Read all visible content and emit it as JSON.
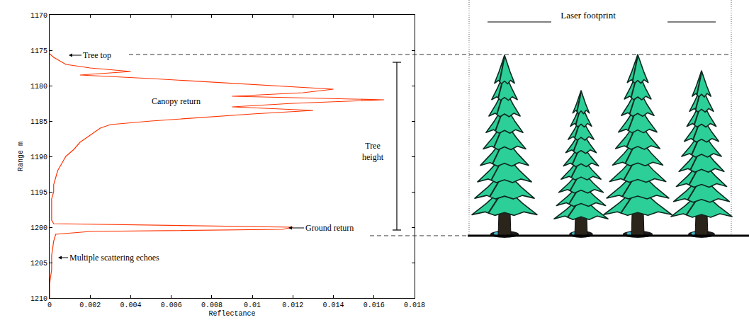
{
  "chart_data": {
    "type": "line",
    "x_label": "Reflectance",
    "y_label": "Range m",
    "color": "#ff3300",
    "x": [
      0,
      0.0002,
      0.0008,
      0.002,
      0.004,
      0.0015,
      0.005,
      0.008,
      0.011,
      0.014,
      0.0125,
      0.009,
      0.0165,
      0.012,
      0.009,
      0.013,
      0.01,
      0.0075,
      0.005,
      0.003,
      0.0025,
      0.002,
      0.0015,
      0.0012,
      0.0008,
      0.0006,
      0.0004,
      0.0003,
      0.0002,
      0.0002,
      0.0001,
      0.0001,
      0.0001,
      0.0001,
      0.0002,
      0.012,
      0.0115,
      0.002,
      0.0003,
      0.0002,
      0.0001,
      0.0001,
      0,
      0
    ],
    "values": [
      1175.5,
      1176,
      1177,
      1177.5,
      1178,
      1178.5,
      1179,
      1179.5,
      1180,
      1180.5,
      1181,
      1181.5,
      1182,
      1182.5,
      1183,
      1183.5,
      1184,
      1184.5,
      1185,
      1185.5,
      1186,
      1187,
      1188,
      1189,
      1190,
      1191,
      1192,
      1193,
      1194,
      1195,
      1196,
      1197,
      1198,
      1199,
      1199.5,
      1200,
      1200.3,
      1200.6,
      1201,
      1202,
      1204,
      1206,
      1208,
      1210
    ],
    "xlim": [
      0,
      0.018
    ],
    "xticks": [
      0,
      0.002,
      0.004,
      0.006,
      0.008,
      0.01,
      0.012,
      0.014,
      0.016,
      0.018
    ],
    "ylim": [
      1210,
      1170
    ],
    "yticks": [
      1170,
      1175,
      1180,
      1185,
      1190,
      1195,
      1200,
      1205,
      1210
    ],
    "grid": false,
    "annotations": [
      "Tree top",
      "Canopy return",
      "Ground return",
      "Multiple scattering echoes",
      "Tree height"
    ]
  },
  "diagram": {
    "footprint_label": "Laser footprint"
  }
}
